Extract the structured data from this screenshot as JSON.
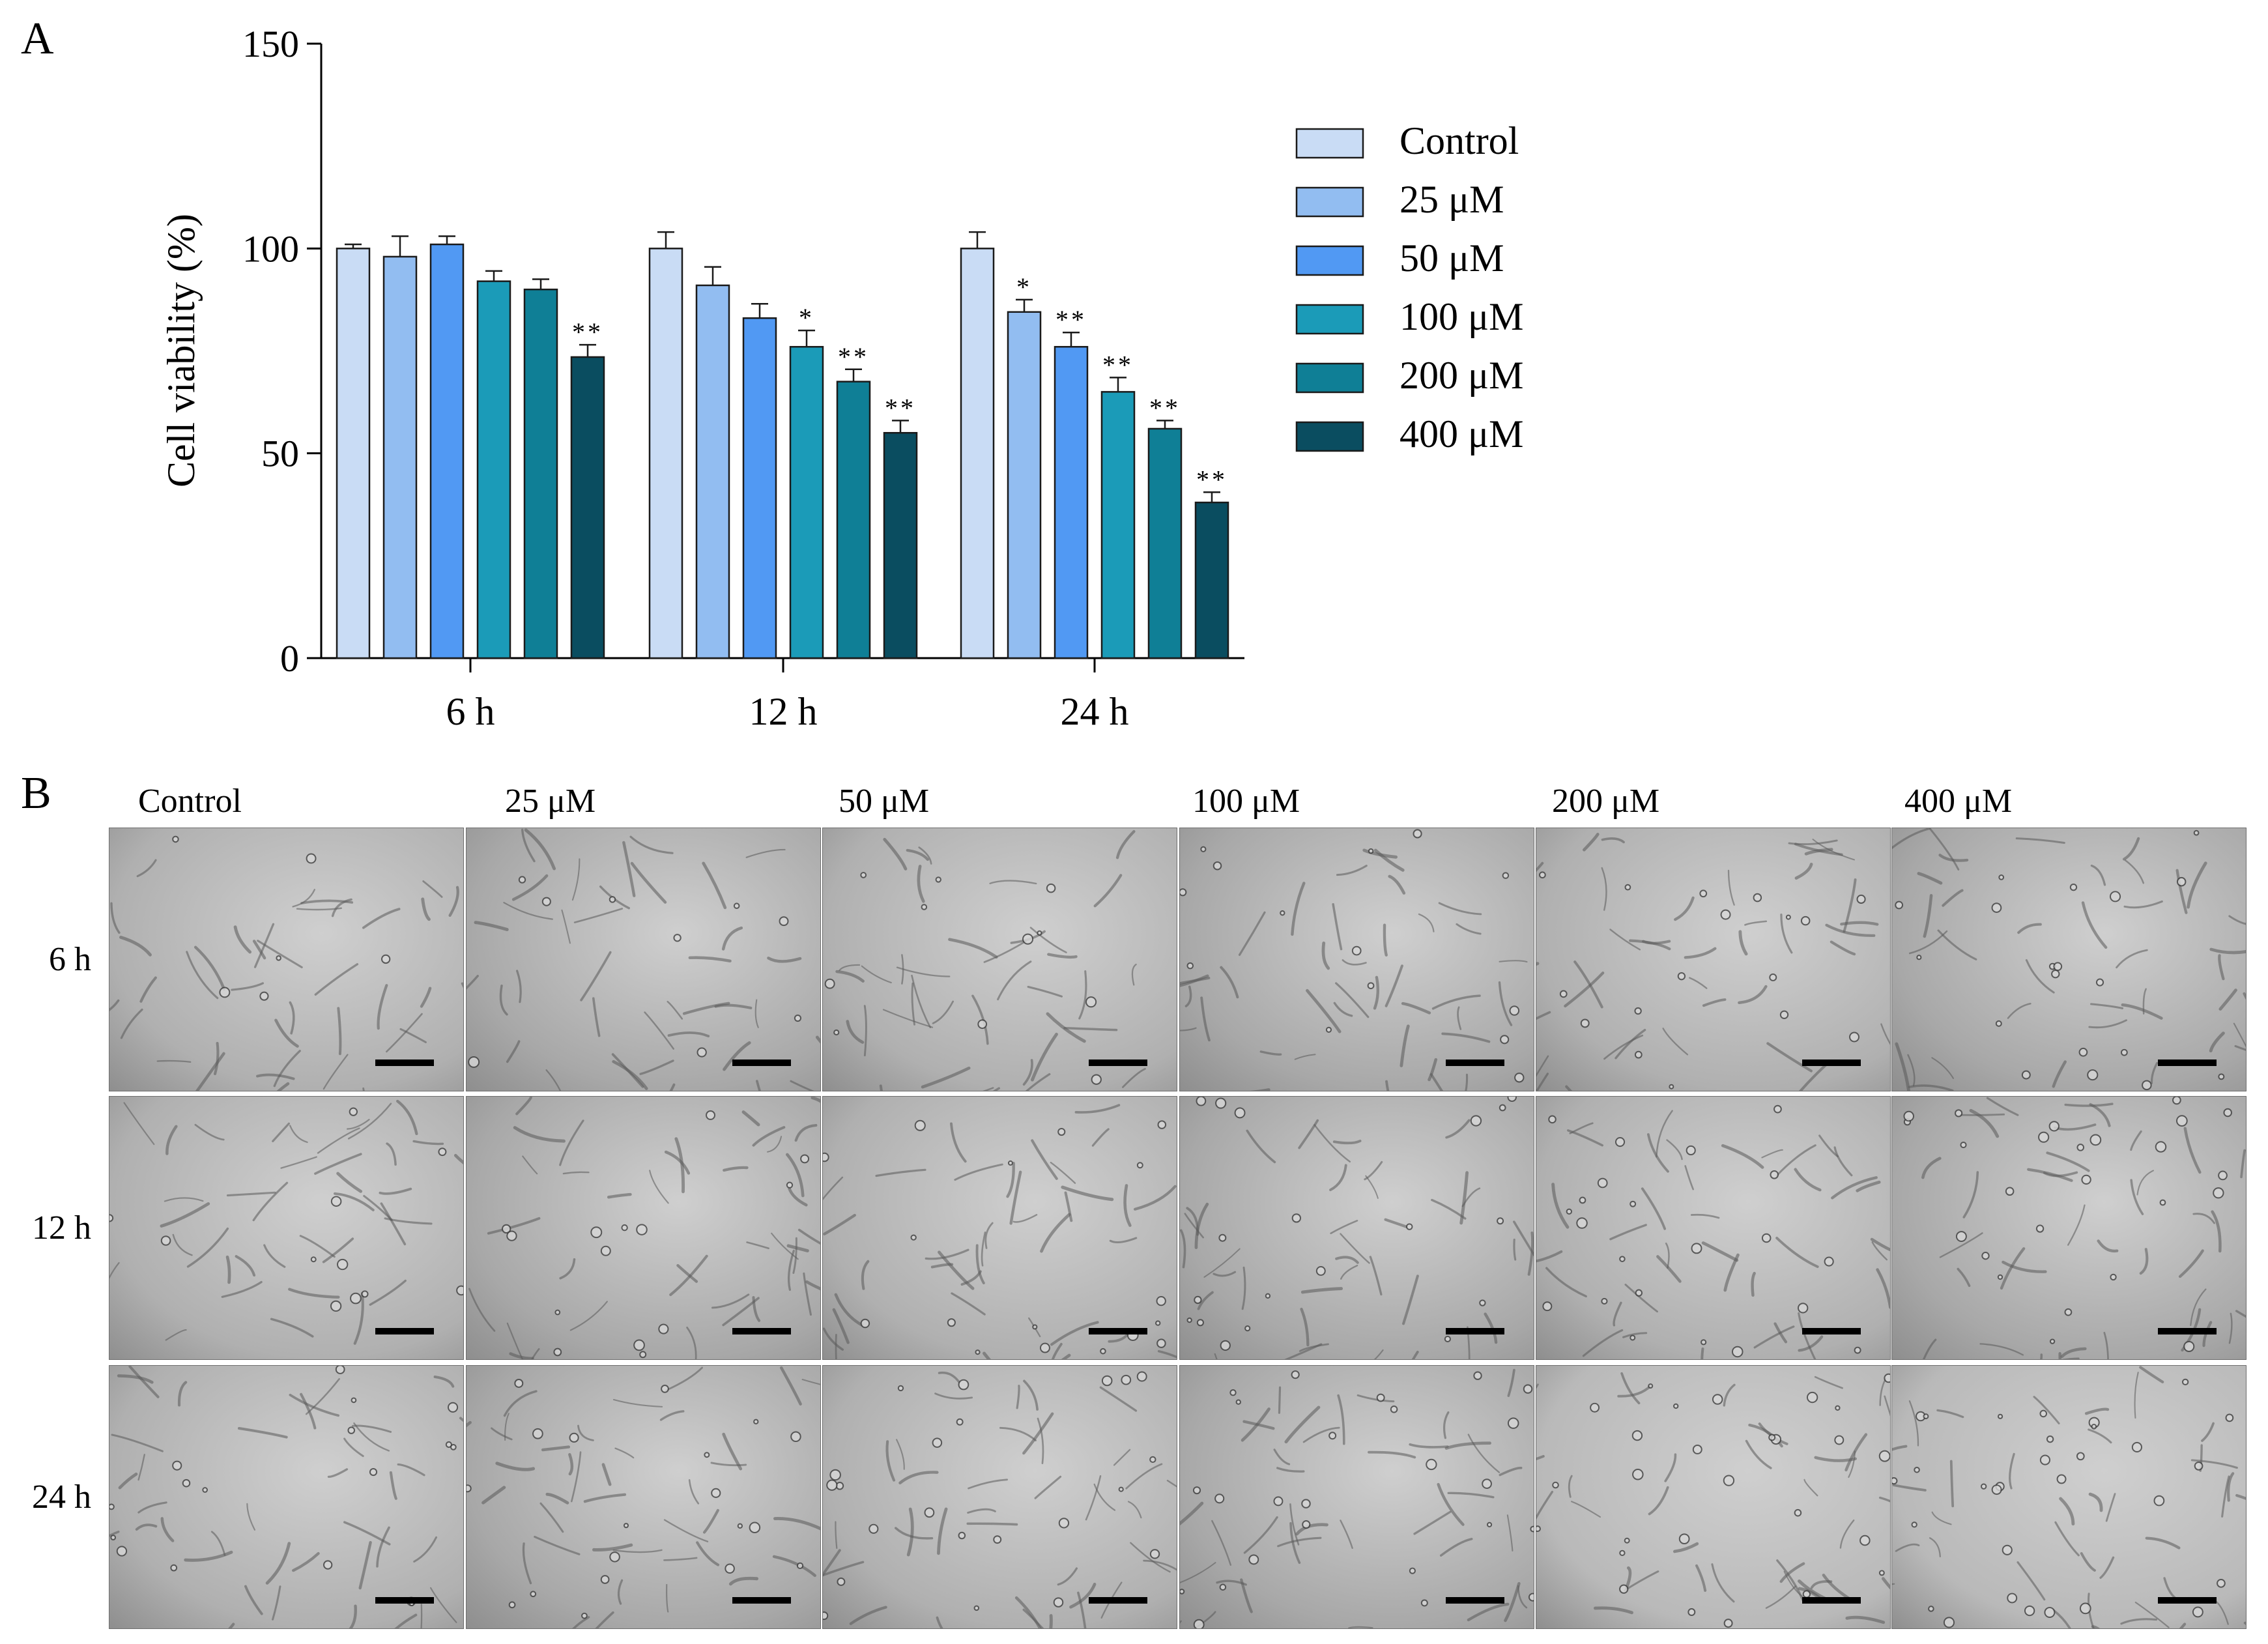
{
  "panels": {
    "a_label": "A",
    "b_label": "B"
  },
  "chart_data": {
    "type": "bar",
    "title": "",
    "xlabel": "",
    "ylabel": "Cell viability (%)",
    "ylim": [
      0,
      150
    ],
    "yticks": [
      0,
      50,
      100,
      150
    ],
    "ytick_labels": [
      "0",
      "50",
      "100",
      "150"
    ],
    "categories": [
      "6 h",
      "12 h",
      "24 h"
    ],
    "series": [
      {
        "name": "Control",
        "color": "#c9dcf5",
        "values": [
          100,
          100,
          100
        ],
        "errors": [
          1,
          4,
          4
        ],
        "sig": [
          "",
          "",
          ""
        ]
      },
      {
        "name": "25 μM",
        "color": "#92bdf1",
        "values": [
          98,
          91,
          84.5
        ],
        "errors": [
          5,
          4.5,
          3
        ],
        "sig": [
          "",
          "",
          "*"
        ]
      },
      {
        "name": "50 μM",
        "color": "#5199f3",
        "values": [
          101,
          83,
          76
        ],
        "errors": [
          2,
          3.5,
          3.5
        ],
        "sig": [
          "",
          "",
          "**"
        ]
      },
      {
        "name": "100 μM",
        "color": "#1b9bb8",
        "values": [
          92,
          76,
          65
        ],
        "errors": [
          2.5,
          4,
          3.5
        ],
        "sig": [
          "",
          "*",
          "**"
        ]
      },
      {
        "name": "200 μM",
        "color": "#0f7f96",
        "values": [
          90,
          67.5,
          56
        ],
        "errors": [
          2.5,
          3,
          2
        ],
        "sig": [
          "",
          "**",
          "**"
        ]
      },
      {
        "name": "400 μM",
        "color": "#0a4d60",
        "values": [
          73.5,
          55,
          38
        ],
        "errors": [
          3,
          3,
          2.5
        ],
        "sig": [
          "**",
          "**",
          "**"
        ]
      }
    ],
    "legend_position": "right"
  },
  "micrographs": {
    "column_labels": [
      "Control",
      "25 μM",
      "50 μM",
      "100 μM",
      "200 μM",
      "400 μM"
    ],
    "row_labels": [
      "6 h",
      "12 h",
      "24 h"
    ]
  }
}
